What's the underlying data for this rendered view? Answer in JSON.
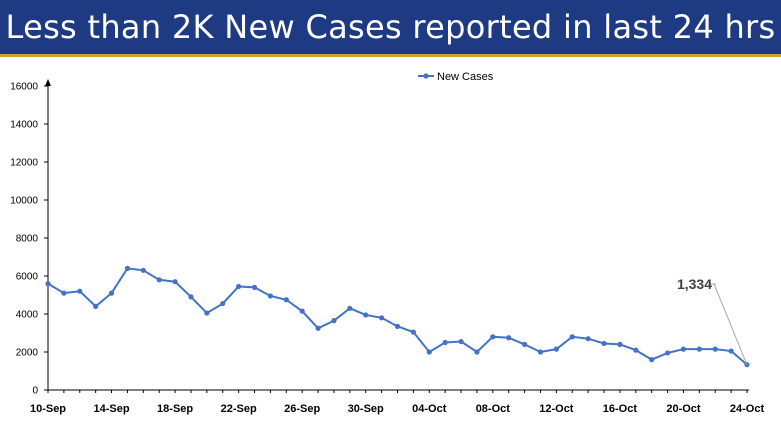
{
  "header": {
    "title": "Less than 2K New Cases reported in last 24 hrs",
    "background_color": "#1d3a82",
    "accent_color": "#c9a227"
  },
  "chart_data": {
    "type": "line",
    "title": "",
    "xlabel": "",
    "ylabel": "",
    "ylim": [
      0,
      16000
    ],
    "yticks": [
      0,
      2000,
      4000,
      6000,
      8000,
      10000,
      12000,
      14000,
      16000
    ],
    "xtick_labels": [
      "10-Sep",
      "14-Sep",
      "18-Sep",
      "22-Sep",
      "26-Sep",
      "30-Sep",
      "04-Oct",
      "08-Oct",
      "12-Oct",
      "16-Oct",
      "20-Oct",
      "24-Oct"
    ],
    "grid": false,
    "legend_position": "top-center",
    "series": [
      {
        "name": "New Cases",
        "color": "#4472c4",
        "x": [
          "10-Sep",
          "11-Sep",
          "12-Sep",
          "13-Sep",
          "14-Sep",
          "15-Sep",
          "16-Sep",
          "17-Sep",
          "18-Sep",
          "19-Sep",
          "20-Sep",
          "21-Sep",
          "22-Sep",
          "23-Sep",
          "24-Sep",
          "25-Sep",
          "26-Sep",
          "27-Sep",
          "28-Sep",
          "29-Sep",
          "30-Sep",
          "01-Oct",
          "02-Oct",
          "03-Oct",
          "04-Oct",
          "05-Oct",
          "06-Oct",
          "07-Oct",
          "08-Oct",
          "09-Oct",
          "10-Oct",
          "11-Oct",
          "12-Oct",
          "13-Oct",
          "14-Oct",
          "15-Oct",
          "16-Oct",
          "17-Oct",
          "18-Oct",
          "19-Oct",
          "20-Oct",
          "21-Oct",
          "22-Oct",
          "23-Oct",
          "24-Oct"
        ],
        "values": [
          5600,
          5100,
          5200,
          4400,
          5100,
          6400,
          6300,
          5800,
          5700,
          4900,
          4050,
          4550,
          5450,
          5400,
          4950,
          4750,
          4150,
          3250,
          3650,
          4300,
          3950,
          3800,
          3350,
          3050,
          2000,
          2500,
          2550,
          2000,
          2800,
          2750,
          2400,
          2000,
          2150,
          2800,
          2700,
          2450,
          2400,
          2100,
          1600,
          1950,
          2150,
          2150,
          2150,
          2050,
          1334
        ]
      }
    ],
    "annotations": [
      {
        "label": "1,334",
        "target_x": "24-Oct",
        "target_value": 1334
      }
    ]
  }
}
